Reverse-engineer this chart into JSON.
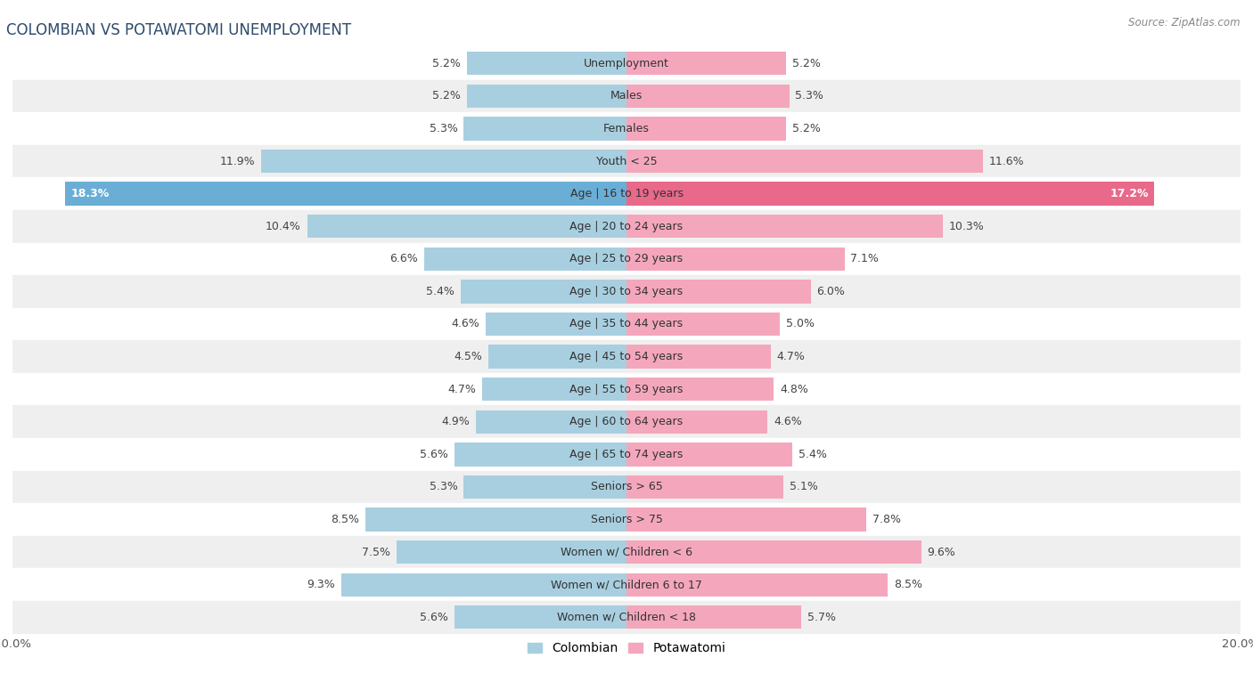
{
  "title": "COLOMBIAN VS POTAWATOMI UNEMPLOYMENT",
  "source": "Source: ZipAtlas.com",
  "categories": [
    "Unemployment",
    "Males",
    "Females",
    "Youth < 25",
    "Age | 16 to 19 years",
    "Age | 20 to 24 years",
    "Age | 25 to 29 years",
    "Age | 30 to 34 years",
    "Age | 35 to 44 years",
    "Age | 45 to 54 years",
    "Age | 55 to 59 years",
    "Age | 60 to 64 years",
    "Age | 65 to 74 years",
    "Seniors > 65",
    "Seniors > 75",
    "Women w/ Children < 6",
    "Women w/ Children 6 to 17",
    "Women w/ Children < 18"
  ],
  "colombian": [
    5.2,
    5.2,
    5.3,
    11.9,
    18.3,
    10.4,
    6.6,
    5.4,
    4.6,
    4.5,
    4.7,
    4.9,
    5.6,
    5.3,
    8.5,
    7.5,
    9.3,
    5.6
  ],
  "potawatomi": [
    5.2,
    5.3,
    5.2,
    11.6,
    17.2,
    10.3,
    7.1,
    6.0,
    5.0,
    4.7,
    4.8,
    4.6,
    5.4,
    5.1,
    7.8,
    9.6,
    8.5,
    5.7
  ],
  "colombian_color": "#a8cfe0",
  "potawatomi_color": "#f4a7bc",
  "colombian_color_highlight": "#6aaed6",
  "potawatomi_color_highlight": "#e8698a",
  "bg_color": "#ffffff",
  "row_color_even": "#ffffff",
  "row_color_odd": "#efefef",
  "max_val": 20.0,
  "bar_height": 0.72,
  "label_fontsize": 9.0,
  "category_fontsize": 9.0,
  "title_fontsize": 12,
  "title_color": "#2e4a6b",
  "highlight_idx": 4
}
